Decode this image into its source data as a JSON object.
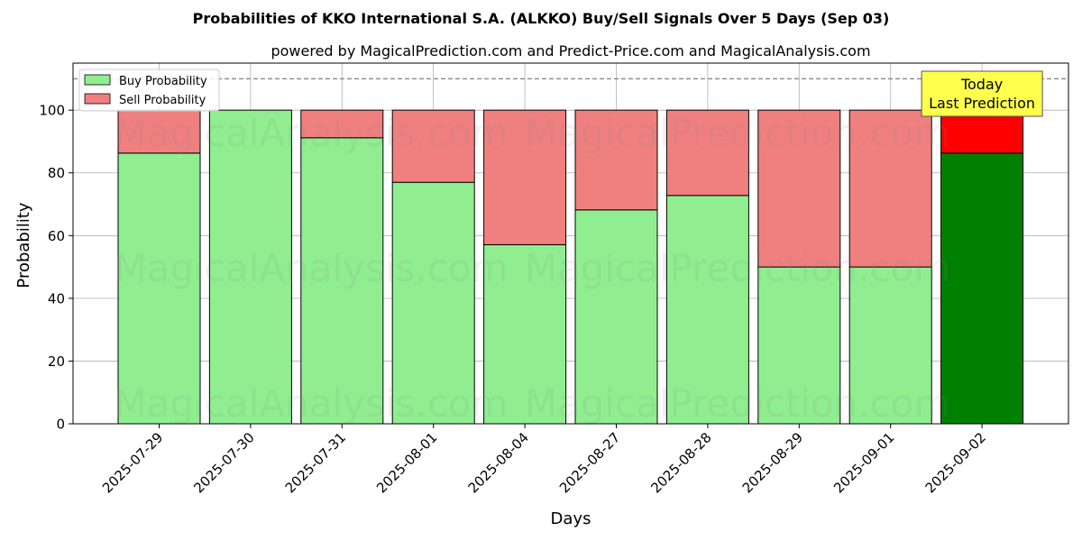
{
  "chart_data": {
    "type": "bar",
    "stacked": true,
    "title": "Probabilities of KKO International S.A. (ALKKO) Buy/Sell Signals Over 5 Days (Sep 03)",
    "subtitle": "powered by MagicalPrediction.com and Predict-Price.com and MagicalAnalysis.com",
    "xlabel": "Days",
    "ylabel": "Probability",
    "ylim": [
      0,
      115
    ],
    "yticks": [
      0,
      20,
      40,
      60,
      80,
      100
    ],
    "grid": true,
    "legend_position": "top-left",
    "reference_line": 110,
    "categories": [
      "2025-07-29",
      "2025-07-30",
      "2025-07-31",
      "2025-08-01",
      "2025-08-04",
      "2025-08-27",
      "2025-08-28",
      "2025-08-29",
      "2025-09-01",
      "2025-09-02"
    ],
    "series": [
      {
        "name": "Buy Probability",
        "values": [
          86.3,
          100.0,
          91.2,
          77.0,
          57.1,
          68.2,
          72.8,
          50.0,
          50.0,
          86.3
        ]
      },
      {
        "name": "Sell Probability",
        "values": [
          13.7,
          0.0,
          8.8,
          23.0,
          42.9,
          31.8,
          27.2,
          50.0,
          50.0,
          13.7
        ]
      }
    ],
    "colors": {
      "buy": "#90ee90",
      "sell": "#f08080",
      "buy_highlight": "#008000",
      "sell_highlight": "#ff0000",
      "annotation_bg": "#ffff4d"
    },
    "highlight_index": 9,
    "annotation": [
      "Today",
      "Last Prediction"
    ],
    "watermarks": [
      "MagicalAnalysis.com",
      "MagicalPrediction.com"
    ]
  }
}
